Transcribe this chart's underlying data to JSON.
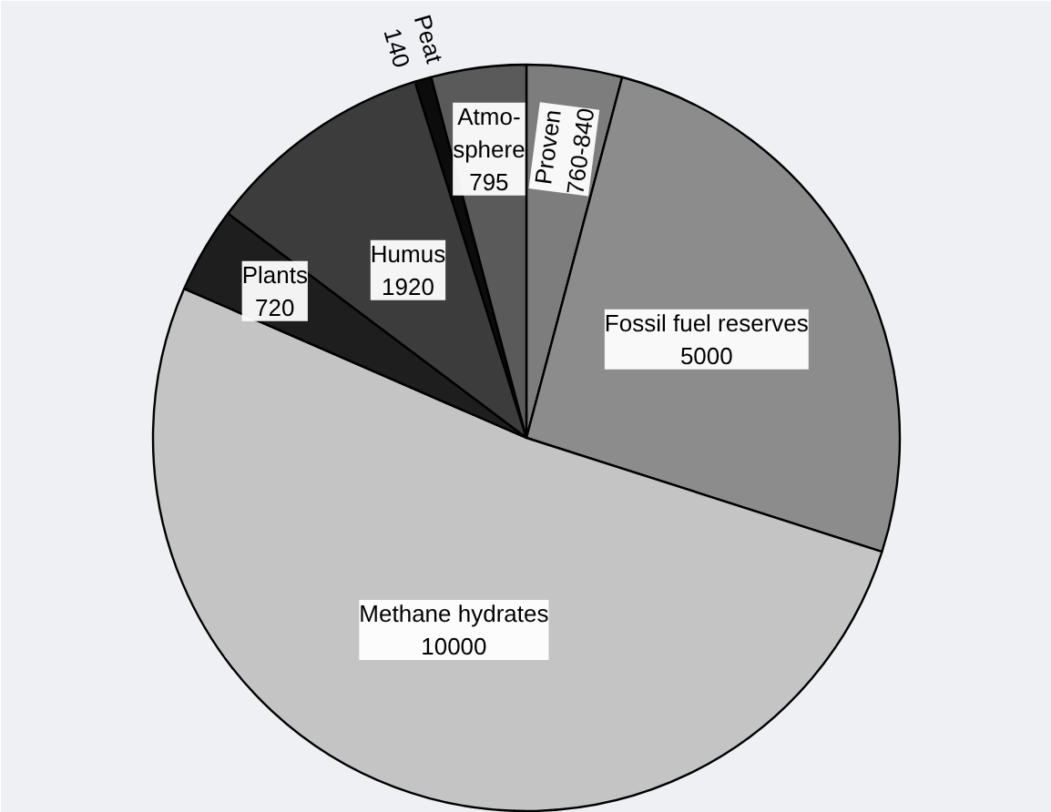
{
  "chart_data": {
    "type": "pie",
    "categories": [
      "Proven",
      "Fossil fuel reserves",
      "Methane hydrates",
      "Plants",
      "Humus",
      "Peat",
      "Atmo-\nsphere"
    ],
    "values": [
      800,
      5000,
      10000,
      720,
      1920,
      140,
      795
    ],
    "value_labels": [
      "760-840",
      "5000",
      "10000",
      "720",
      "1920",
      "140",
      "795"
    ],
    "colors": [
      "#7d7d7d",
      "#8c8c8c",
      "#c4c4c4",
      "#1e1e1e",
      "#3c3c3c",
      "#0c0c0c",
      "#5a5a5a"
    ]
  }
}
